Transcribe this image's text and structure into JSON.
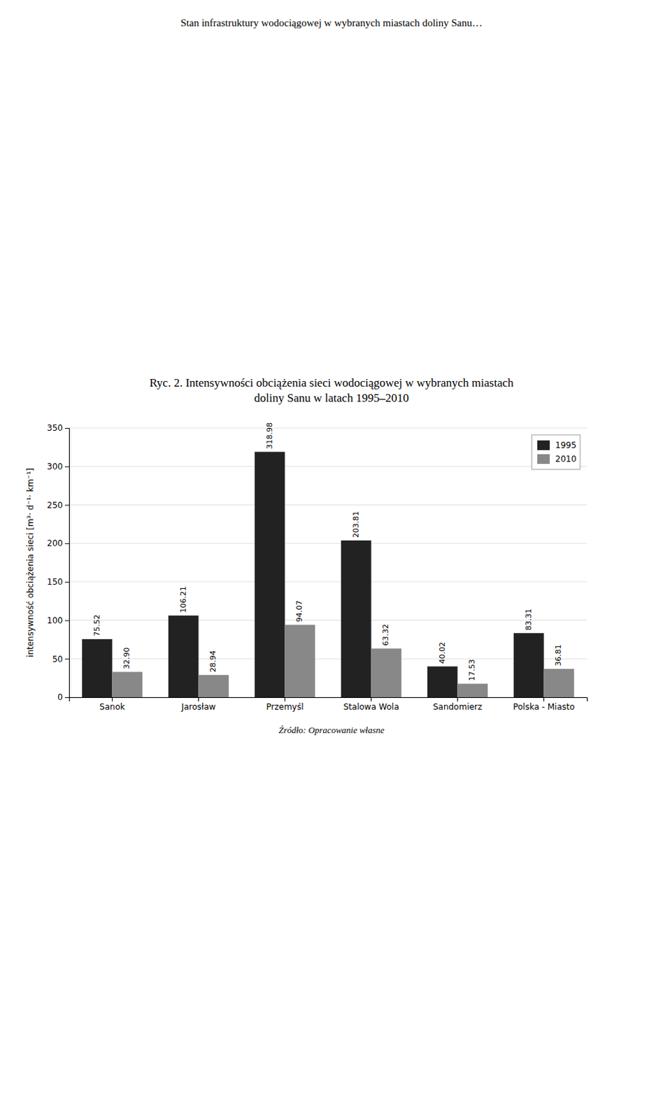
{
  "chart_data": {
    "type": "bar",
    "title": "Stan infrastruktury wodociągowej w wybranych miastach doliny Sanu…",
    "subtitle": [
      "Ryc. 2. Intensywności obciążenia sieci wodociągowej w wybranych miastach",
      "doliny Sanu w latach 1995–2010"
    ],
    "annotations": [
      "Źródło: Opracowanie własne"
    ],
    "categories": [
      "Sanok",
      "Jarosław",
      "Przemyśl",
      "Stalowa Wola",
      "Sandomierz",
      "Polska - Miasto"
    ],
    "series": [
      {
        "name": "1995",
        "color": "#222222",
        "values": [
          75.52,
          106.21,
          318.98,
          203.81,
          40.02,
          83.31
        ],
        "value_labels": [
          "75.52",
          "106.21",
          "318.98",
          "203.81",
          "40.02",
          "83.31"
        ]
      },
      {
        "name": "2010",
        "color": "#888888",
        "values": [
          32.9,
          28.94,
          94.07,
          63.32,
          17.53,
          36.81
        ],
        "value_labels": [
          "32.90",
          "28.94",
          "94.07",
          "63.32",
          "17.53",
          "36.81"
        ]
      }
    ],
    "ylabel": "intensywność obciążenia sieci [m³· d⁻¹· km⁻¹]",
    "ylim": [
      0,
      350
    ],
    "yticks": [
      0,
      50,
      100,
      150,
      200,
      250,
      300,
      350
    ],
    "grid": true,
    "legend": "upper right",
    "data_labels": true
  }
}
